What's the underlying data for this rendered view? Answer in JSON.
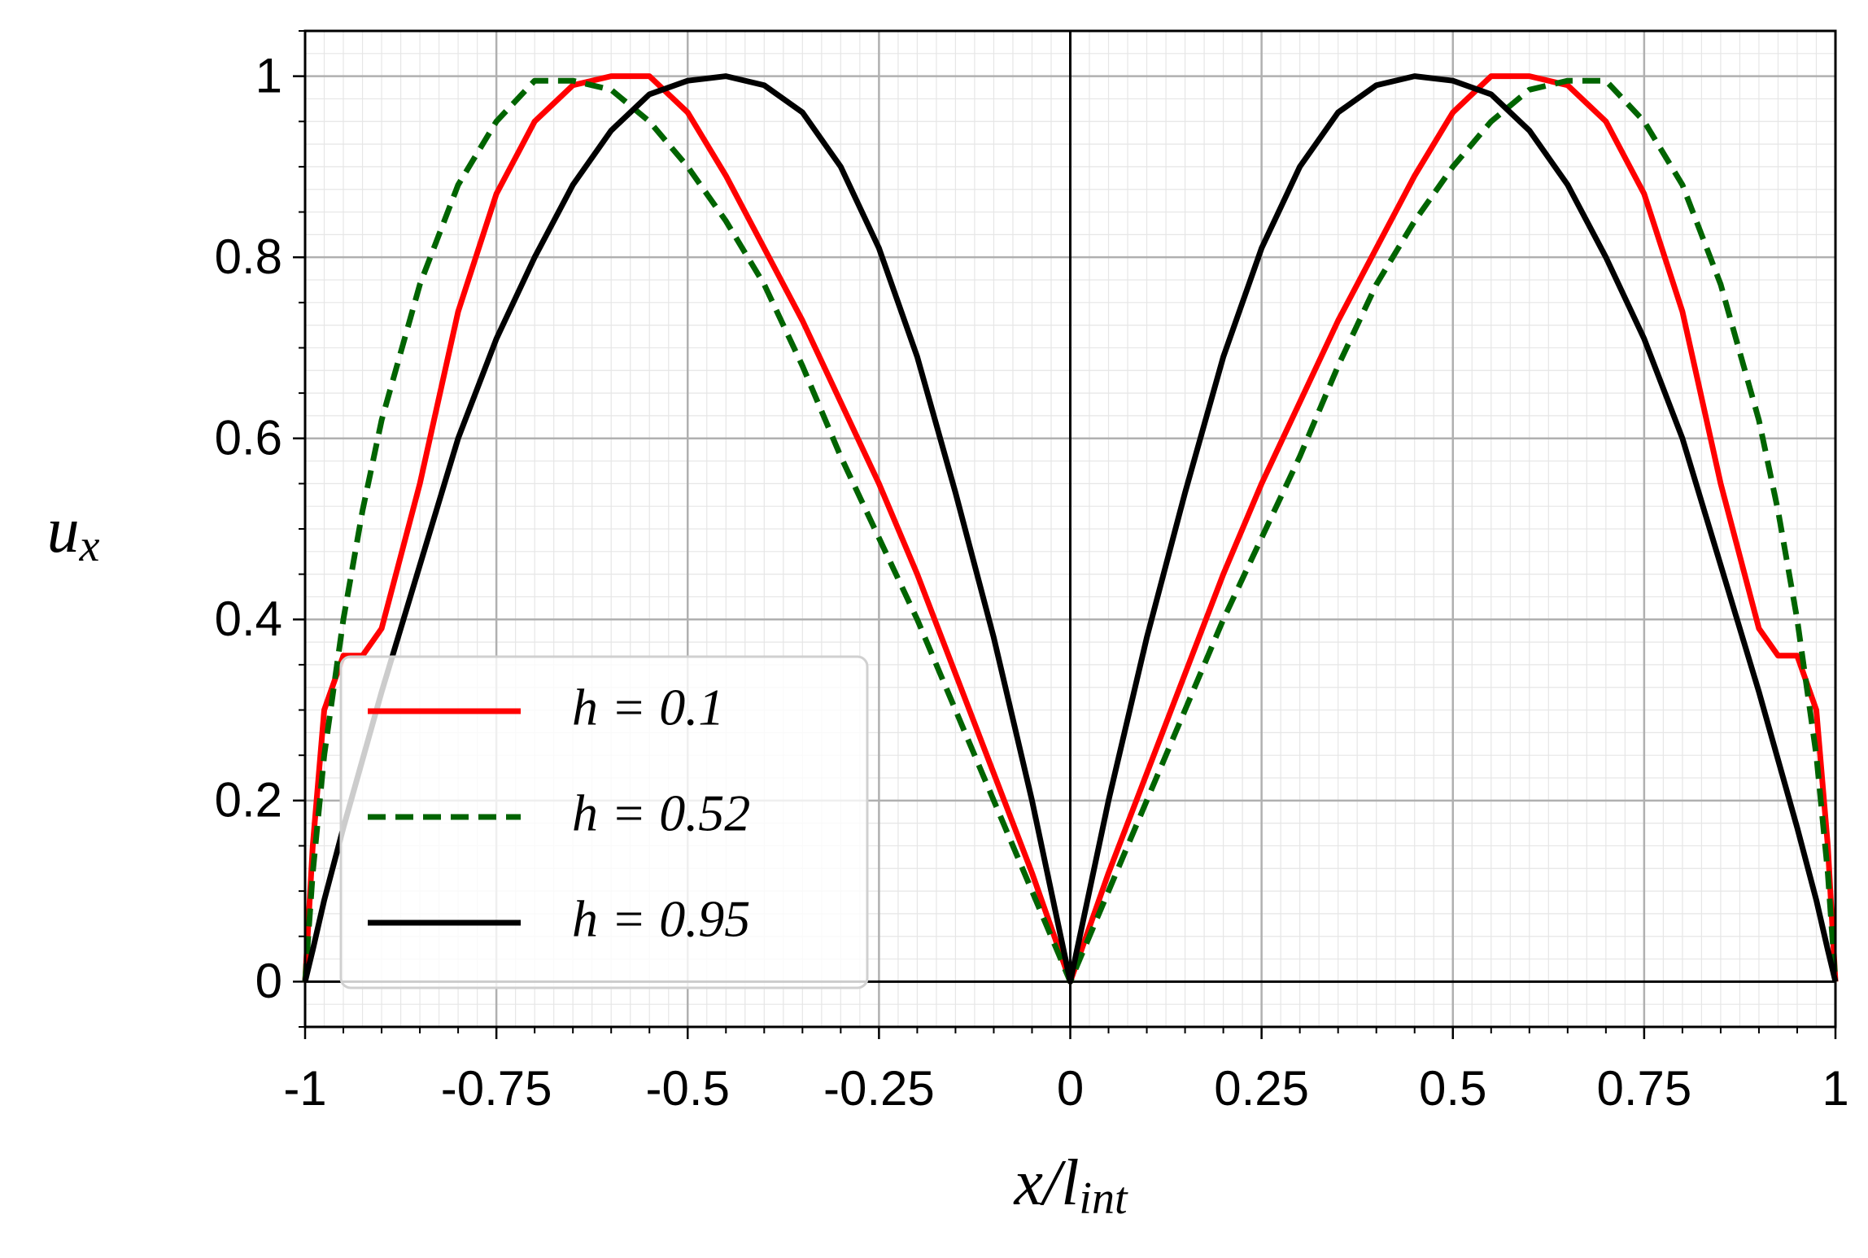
{
  "chart_data": {
    "type": "line",
    "xlabel": {
      "base": "x/l",
      "subscript": "int"
    },
    "ylabel": {
      "base": "u",
      "subscript": "x"
    },
    "x": [
      -1,
      -0.99,
      -0.975,
      -0.95,
      -0.925,
      -0.9,
      -0.85,
      -0.8,
      -0.75,
      -0.7,
      -0.65,
      -0.6,
      -0.55,
      -0.5,
      -0.45,
      -0.4,
      -0.35,
      -0.3,
      -0.25,
      -0.2,
      -0.15,
      -0.1,
      -0.05,
      0,
      0.05,
      0.1,
      0.15,
      0.2,
      0.25,
      0.3,
      0.35,
      0.4,
      0.45,
      0.5,
      0.55,
      0.6,
      0.65,
      0.7,
      0.75,
      0.8,
      0.85,
      0.9,
      0.925,
      0.95,
      0.975,
      0.99,
      1
    ],
    "series": [
      {
        "name": "h = 0.1",
        "color": "#ff0000",
        "dash": false,
        "values": [
          0,
          0.15,
          0.3,
          0.36,
          0.36,
          0.39,
          0.55,
          0.74,
          0.87,
          0.95,
          0.99,
          1.0,
          1.0,
          0.96,
          0.89,
          0.81,
          0.73,
          0.64,
          0.55,
          0.45,
          0.34,
          0.23,
          0.12,
          0,
          0.12,
          0.23,
          0.34,
          0.45,
          0.55,
          0.64,
          0.73,
          0.81,
          0.89,
          0.96,
          1.0,
          1.0,
          0.99,
          0.95,
          0.87,
          0.74,
          0.55,
          0.39,
          0.36,
          0.36,
          0.3,
          0.15,
          0
        ]
      },
      {
        "name": "h = 0.52",
        "color": "#006400",
        "dash": true,
        "values": [
          0,
          0.12,
          0.25,
          0.4,
          0.52,
          0.62,
          0.77,
          0.88,
          0.95,
          0.995,
          0.995,
          0.985,
          0.95,
          0.9,
          0.84,
          0.77,
          0.68,
          0.58,
          0.49,
          0.4,
          0.3,
          0.2,
          0.1,
          0,
          0.1,
          0.2,
          0.3,
          0.4,
          0.49,
          0.58,
          0.68,
          0.77,
          0.84,
          0.9,
          0.95,
          0.985,
          0.995,
          0.995,
          0.95,
          0.88,
          0.77,
          0.62,
          0.52,
          0.4,
          0.25,
          0.12,
          0
        ]
      },
      {
        "name": "h = 0.95",
        "color": "#000000",
        "dash": false,
        "values": [
          0,
          0.035,
          0.09,
          0.17,
          0.245,
          0.32,
          0.46,
          0.6,
          0.71,
          0.8,
          0.88,
          0.94,
          0.98,
          0.995,
          1.0,
          0.99,
          0.96,
          0.9,
          0.81,
          0.69,
          0.54,
          0.38,
          0.2,
          0,
          0.2,
          0.38,
          0.54,
          0.69,
          0.81,
          0.9,
          0.96,
          0.99,
          1.0,
          0.995,
          0.98,
          0.94,
          0.88,
          0.8,
          0.71,
          0.6,
          0.46,
          0.32,
          0.245,
          0.17,
          0.09,
          0.035,
          0
        ]
      }
    ],
    "xlim": [
      -1,
      1
    ],
    "ylim": [
      -0.05,
      1.05
    ],
    "xticks": [
      -1,
      -0.75,
      -0.5,
      -0.25,
      0,
      0.25,
      0.5,
      0.75,
      1
    ],
    "yticks": [
      0,
      0.2,
      0.4,
      0.6,
      0.8,
      1
    ],
    "grid": true,
    "minor_grid": true,
    "zero_lines": true,
    "legend": "lower left"
  }
}
